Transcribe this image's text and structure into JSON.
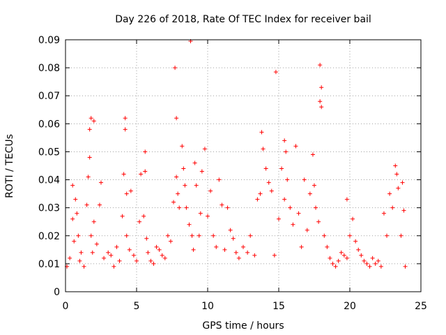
{
  "chart_data": {
    "type": "scatter",
    "title": "Day 226 of 2018, Rate Of TEC Index for receiver bail",
    "xlabel": "GPS time / hours",
    "ylabel": "ROTI / TECUs",
    "xlim": [
      0,
      25
    ],
    "ylim": [
      0,
      0.09
    ],
    "x_ticks": [
      0,
      5,
      10,
      15,
      20,
      25
    ],
    "y_ticks": [
      0,
      0.01,
      0.02,
      0.03,
      0.04,
      0.05,
      0.06,
      0.07,
      0.08,
      0.09
    ],
    "x_tick_labels": [
      "0",
      "5",
      "10",
      "15",
      "20",
      "25"
    ],
    "y_tick_labels": [
      "0",
      "0.01",
      "0.02",
      "0.03",
      "0.04",
      "0.05",
      "0.06",
      "0.07",
      "0.08",
      "0.09"
    ],
    "grid": true,
    "marker": "+",
    "marker_color": "#ff0000",
    "series": [
      {
        "name": "ROTI",
        "x": [
          0.1,
          0.3,
          0.5,
          0.5,
          0.6,
          0.7,
          0.8,
          0.9,
          1.0,
          1.1,
          1.3,
          1.5,
          1.6,
          1.7,
          1.7,
          1.8,
          1.8,
          1.9,
          2.0,
          2.0,
          2.2,
          2.4,
          2.5,
          2.7,
          3.0,
          3.2,
          3.4,
          3.6,
          3.8,
          4.0,
          4.1,
          4.2,
          4.2,
          4.3,
          4.3,
          4.5,
          4.6,
          4.8,
          5.0,
          5.2,
          5.3,
          5.5,
          5.6,
          5.6,
          5.7,
          5.8,
          6.0,
          6.2,
          6.4,
          6.6,
          6.8,
          7.0,
          7.2,
          7.4,
          7.6,
          7.7,
          7.8,
          7.8,
          7.9,
          8.0,
          8.2,
          8.3,
          8.4,
          8.5,
          8.7,
          8.8,
          8.9,
          9.0,
          9.1,
          9.2,
          9.4,
          9.5,
          9.6,
          9.8,
          10.0,
          10.2,
          10.4,
          10.6,
          10.8,
          11.0,
          11.2,
          11.4,
          11.6,
          11.8,
          12.0,
          12.2,
          12.5,
          12.8,
          13.0,
          13.3,
          13.5,
          13.7,
          13.8,
          13.9,
          14.1,
          14.3,
          14.5,
          14.7,
          14.8,
          15.0,
          15.2,
          15.4,
          15.4,
          15.5,
          15.6,
          15.8,
          16.0,
          16.2,
          16.4,
          16.6,
          16.8,
          17.0,
          17.2,
          17.4,
          17.5,
          17.6,
          17.8,
          17.9,
          17.9,
          18.0,
          18.0,
          18.2,
          18.4,
          18.6,
          18.8,
          19.0,
          19.2,
          19.4,
          19.6,
          19.8,
          19.8,
          20.0,
          20.2,
          20.4,
          20.6,
          20.8,
          21.0,
          21.2,
          21.4,
          21.6,
          21.8,
          22.0,
          22.2,
          22.4,
          22.6,
          22.8,
          23.0,
          23.2,
          23.3,
          23.4,
          23.6,
          23.7,
          23.8,
          23.9
        ],
        "y": [
          0.009,
          0.012,
          0.038,
          0.026,
          0.018,
          0.033,
          0.028,
          0.02,
          0.011,
          0.014,
          0.009,
          0.031,
          0.041,
          0.048,
          0.058,
          0.062,
          0.02,
          0.014,
          0.061,
          0.025,
          0.017,
          0.031,
          0.039,
          0.012,
          0.014,
          0.013,
          0.009,
          0.016,
          0.011,
          0.027,
          0.042,
          0.062,
          0.058,
          0.035,
          0.02,
          0.015,
          0.036,
          0.013,
          0.011,
          0.025,
          0.042,
          0.027,
          0.05,
          0.043,
          0.019,
          0.014,
          0.011,
          0.01,
          0.016,
          0.015,
          0.013,
          0.012,
          0.02,
          0.018,
          0.032,
          0.08,
          0.062,
          0.041,
          0.035,
          0.03,
          0.052,
          0.044,
          0.038,
          0.03,
          0.024,
          0.0895,
          0.02,
          0.015,
          0.046,
          0.038,
          0.02,
          0.028,
          0.043,
          0.051,
          0.027,
          0.036,
          0.02,
          0.016,
          0.04,
          0.031,
          0.015,
          0.03,
          0.022,
          0.019,
          0.014,
          0.012,
          0.016,
          0.014,
          0.02,
          0.013,
          0.033,
          0.035,
          0.057,
          0.051,
          0.044,
          0.039,
          0.036,
          0.013,
          0.0785,
          0.026,
          0.044,
          0.054,
          0.033,
          0.05,
          0.04,
          0.03,
          0.024,
          0.052,
          0.028,
          0.016,
          0.04,
          0.022,
          0.035,
          0.049,
          0.038,
          0.03,
          0.025,
          0.081,
          0.068,
          0.073,
          0.066,
          0.02,
          0.016,
          0.012,
          0.01,
          0.009,
          0.011,
          0.014,
          0.013,
          0.012,
          0.033,
          0.02,
          0.026,
          0.018,
          0.015,
          0.013,
          0.011,
          0.01,
          0.009,
          0.012,
          0.01,
          0.011,
          0.009,
          0.028,
          0.02,
          0.035,
          0.03,
          0.045,
          0.042,
          0.037,
          0.02,
          0.039,
          0.029,
          0.009
        ]
      }
    ]
  }
}
